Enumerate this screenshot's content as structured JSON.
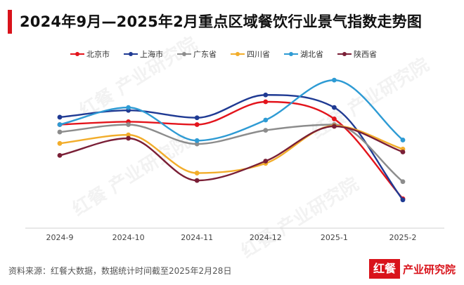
{
  "title": "2024年9月—2025年2月重点区域餐饮行业景气指数走势图",
  "source_text": "资料来源：红餐大数据，数据统计时间截至2025年2月28日",
  "brand": {
    "mark": "红餐",
    "name": "产业研究院"
  },
  "watermark": "红餐 产业研究院",
  "chart_data": {
    "type": "line",
    "categories": [
      "2024-9",
      "2024-10",
      "2024-11",
      "2024-12",
      "2025-1",
      "2025-2"
    ],
    "series": [
      {
        "name": "北京市",
        "color": "#e3141c",
        "values": [
          70.0,
          70.5,
          70.0,
          74.0,
          71.0,
          57.0
        ]
      },
      {
        "name": "上海市",
        "color": "#1f3a93",
        "values": [
          71.3,
          72.5,
          71.2,
          75.2,
          73.0,
          56.8
        ]
      },
      {
        "name": "广东省",
        "color": "#8c8c8c",
        "values": [
          68.7,
          70.0,
          66.6,
          69.0,
          70.0,
          60.0
        ]
      },
      {
        "name": "四川省",
        "color": "#f2ad2b",
        "values": [
          66.7,
          68.2,
          61.5,
          63.2,
          69.8,
          65.7
        ]
      },
      {
        "name": "湖北省",
        "color": "#2e9bd4",
        "values": [
          70.0,
          73.0,
          67.2,
          70.8,
          77.8,
          67.3
        ]
      },
      {
        "name": "陕西省",
        "color": "#7a1f36",
        "values": [
          64.6,
          67.6,
          60.2,
          63.6,
          69.7,
          65.2
        ]
      }
    ],
    "ylim": [
      50,
      82
    ],
    "grid": false,
    "legend_position": "top"
  }
}
